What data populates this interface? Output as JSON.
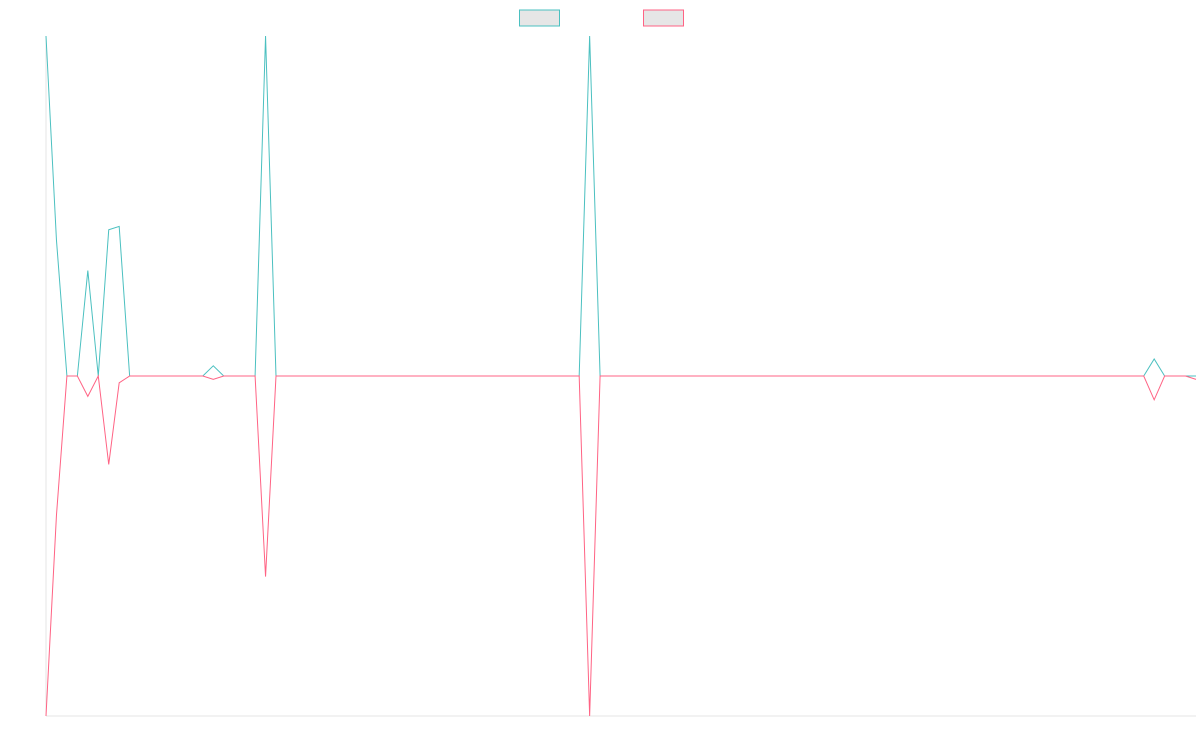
{
  "chart_data": {
    "type": "line",
    "title": "",
    "xlabel": "",
    "ylabel": "",
    "x_count": 111,
    "grid": false,
    "legend_position": "top-center",
    "ylim": [
      -1,
      1
    ],
    "series": [
      {
        "color": "#4bc0c0",
        "fill": "#e6e6e6",
        "legend_label": "",
        "values": [
          1.0,
          0.4,
          0.0,
          0.0,
          0.31,
          0.0,
          0.43,
          0.44,
          0.0,
          0.0,
          0.0,
          0.0,
          0.0,
          0.0,
          0.0,
          0.0,
          0.03,
          0.0,
          0.0,
          0.0,
          0.0,
          1.0,
          0.0,
          0.0,
          0.0,
          0.0,
          0.0,
          0.0,
          0.0,
          0.0,
          0.0,
          0.0,
          0.0,
          0.0,
          0.0,
          0.0,
          0.0,
          0.0,
          0.0,
          0.0,
          0.0,
          0.0,
          0.0,
          0.0,
          0.0,
          0.0,
          0.0,
          0.0,
          0.0,
          0.0,
          0.0,
          0.0,
          1.0,
          0.0,
          0.0,
          0.0,
          0.0,
          0.0,
          0.0,
          0.0,
          0.0,
          0.0,
          0.0,
          0.0,
          0.0,
          0.0,
          0.0,
          0.0,
          0.0,
          0.0,
          0.0,
          0.0,
          0.0,
          0.0,
          0.0,
          0.0,
          0.0,
          0.0,
          0.0,
          0.0,
          0.0,
          0.0,
          0.0,
          0.0,
          0.0,
          0.0,
          0.0,
          0.0,
          0.0,
          0.0,
          0.0,
          0.0,
          0.0,
          0.0,
          0.0,
          0.0,
          0.0,
          0.0,
          0.0,
          0.0,
          0.0,
          0.0,
          0.0,
          0.0,
          0.0,
          0.0,
          0.05,
          0.0,
          0.0,
          0.0,
          0.0
        ]
      },
      {
        "color": "#ff6384",
        "fill": "#e6e6e6",
        "legend_label": "",
        "values": [
          -1.0,
          -0.41,
          0.0,
          0.0,
          -0.06,
          0.0,
          -0.26,
          -0.02,
          0.0,
          0.0,
          0.0,
          0.0,
          0.0,
          0.0,
          0.0,
          0.0,
          -0.01,
          0.0,
          0.0,
          0.0,
          0.0,
          -0.59,
          0.0,
          0.0,
          0.0,
          0.0,
          0.0,
          0.0,
          0.0,
          0.0,
          0.0,
          0.0,
          0.0,
          0.0,
          0.0,
          0.0,
          0.0,
          0.0,
          0.0,
          0.0,
          0.0,
          0.0,
          0.0,
          0.0,
          0.0,
          0.0,
          0.0,
          0.0,
          0.0,
          0.0,
          0.0,
          0.0,
          -1.0,
          0.0,
          0.0,
          0.0,
          0.0,
          0.0,
          0.0,
          0.0,
          0.0,
          0.0,
          0.0,
          0.0,
          0.0,
          0.0,
          0.0,
          0.0,
          0.0,
          0.0,
          0.0,
          0.0,
          0.0,
          0.0,
          0.0,
          0.0,
          0.0,
          0.0,
          0.0,
          0.0,
          0.0,
          0.0,
          0.0,
          0.0,
          0.0,
          0.0,
          0.0,
          0.0,
          0.0,
          0.0,
          0.0,
          0.0,
          0.0,
          0.0,
          0.0,
          0.0,
          0.0,
          0.0,
          0.0,
          0.0,
          0.0,
          0.0,
          0.0,
          0.0,
          0.0,
          0.0,
          -0.07,
          0.0,
          0.0,
          0.0,
          -0.01
        ]
      }
    ]
  }
}
